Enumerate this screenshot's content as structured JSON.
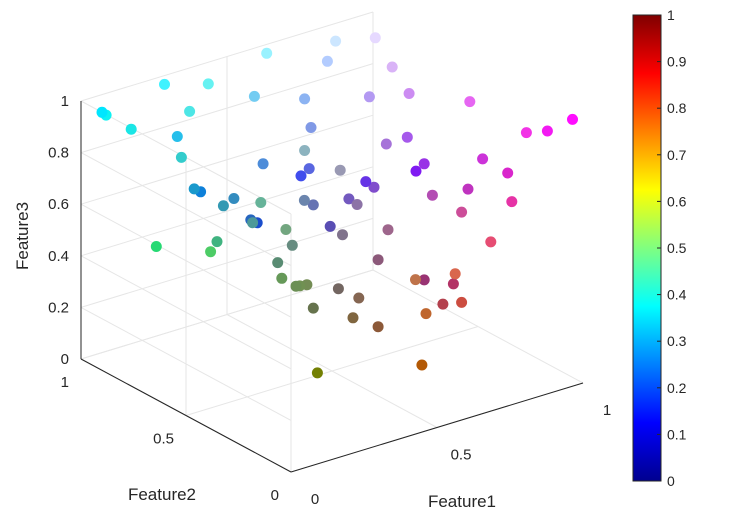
{
  "chart_data": {
    "type": "scatter3d",
    "title": "",
    "xlabel": "Feature1",
    "ylabel": "Feature2",
    "zlabel": "Feature3",
    "xlim": [
      0,
      1
    ],
    "ylim": [
      0,
      1
    ],
    "zlim": [
      0,
      1
    ],
    "x_ticks": [
      "0",
      "0.5",
      "1"
    ],
    "y_ticks": [
      "0",
      "0.5",
      "1"
    ],
    "z_ticks": [
      "0",
      "0.2",
      "0.4",
      "0.6",
      "0.8",
      "1"
    ],
    "grid": true,
    "colormap": "jet",
    "colorbar": {
      "range": [
        0,
        1
      ],
      "ticks": [
        "0",
        "0.1",
        "0.2",
        "0.3",
        "0.4",
        "0.5",
        "0.6",
        "0.7",
        "0.8",
        "0.9",
        "1"
      ],
      "colors": [
        "#00008f",
        "#0000ff",
        "#0080ff",
        "#00ffff",
        "#80ff80",
        "#ffff00",
        "#ff8000",
        "#ff0000",
        "#800000"
      ]
    },
    "series_note": "point color encodes RGB = (Feature1, Feature2, Feature3)",
    "points": [
      [
        0.45,
        0.5,
        0.01
      ],
      [
        0.7,
        0.35,
        0.02
      ],
      [
        0.55,
        0.35,
        0.22
      ],
      [
        0.75,
        0.4,
        0.18
      ],
      [
        0.8,
        0.3,
        0.25
      ],
      [
        0.7,
        0.25,
        0.3
      ],
      [
        0.75,
        0.45,
        0.29
      ],
      [
        0.85,
        0.4,
        0.3
      ],
      [
        0.9,
        0.3,
        0.45
      ],
      [
        0.7,
        0.2,
        0.4
      ],
      [
        0.6,
        0.2,
        0.45
      ],
      [
        0.55,
        0.35,
        0.48
      ],
      [
        0.62,
        0.4,
        0.55
      ],
      [
        0.45,
        0.4,
        0.38
      ],
      [
        0.4,
        0.45,
        0.3
      ],
      [
        0.42,
        0.56,
        0.33
      ],
      [
        0.45,
        0.55,
        0.33
      ],
      [
        0.44,
        0.57,
        0.32
      ],
      [
        0.4,
        0.6,
        0.35
      ],
      [
        0.35,
        0.55,
        0.45
      ],
      [
        0.3,
        0.8,
        0.4
      ],
      [
        0.5,
        0.4,
        0.25
      ],
      [
        0.45,
        0.65,
        0.5
      ],
      [
        0.4,
        0.7,
        0.6
      ],
      [
        0.52,
        0.4,
        0.32
      ],
      [
        0.4,
        0.55,
        0.5
      ],
      [
        0.5,
        0.45,
        0.55
      ],
      [
        0.3,
        0.6,
        0.6
      ],
      [
        0.25,
        0.7,
        0.5
      ],
      [
        0.15,
        0.85,
        0.45
      ],
      [
        0.2,
        0.6,
        0.7
      ],
      [
        0.35,
        0.3,
        0.7
      ],
      [
        0.15,
        0.4,
        0.75
      ],
      [
        0.1,
        0.6,
        0.8
      ],
      [
        0.2,
        0.55,
        0.75
      ],
      [
        0.4,
        0.45,
        0.7
      ],
      [
        0.45,
        0.35,
        0.75
      ],
      [
        0.5,
        0.3,
        0.8
      ],
      [
        0.55,
        0.45,
        0.65
      ],
      [
        0.42,
        0.52,
        0.68
      ],
      [
        0.6,
        0.6,
        0.7
      ],
      [
        0.1,
        0.3,
        0.8
      ],
      [
        0.05,
        0.5,
        0.85
      ],
      [
        0.3,
        0.55,
        0.85
      ],
      [
        0.55,
        0.7,
        0.75
      ],
      [
        0.8,
        0.2,
        0.85
      ],
      [
        0.85,
        0.15,
        0.8
      ],
      [
        0.75,
        0.2,
        0.75
      ],
      [
        0.9,
        0.2,
        0.65
      ],
      [
        0.8,
        0.3,
        0.6
      ],
      [
        0.7,
        0.3,
        0.7
      ],
      [
        0.6,
        0.2,
        0.9
      ],
      [
        0.5,
        0.1,
        0.95
      ],
      [
        0.4,
        0.2,
        0.9
      ],
      [
        0.65,
        0.45,
        0.85
      ],
      [
        0.2,
        0.8,
        0.8
      ],
      [
        0.1,
        0.9,
        0.9
      ],
      [
        0.05,
        0.95,
        0.95
      ],
      [
        0.0,
        0.9,
        1.0
      ],
      [
        0.3,
        0.9,
        0.9
      ],
      [
        0.45,
        0.8,
        0.95
      ],
      [
        0.55,
        0.7,
        0.95
      ],
      [
        0.7,
        0.6,
        0.95
      ],
      [
        0.8,
        0.55,
        0.95
      ],
      [
        0.9,
        0.4,
        0.95
      ],
      [
        0.95,
        0.1,
        0.95
      ],
      [
        1.0,
        0.05,
        1.0
      ],
      [
        0.95,
        0.2,
        0.9
      ],
      [
        0.7,
        0.8,
        1.0
      ],
      [
        0.8,
        0.9,
        1.0
      ],
      [
        0.25,
        0.95,
        1.0
      ],
      [
        0.4,
        0.95,
        0.95
      ],
      [
        0.6,
        0.95,
        1.0
      ],
      [
        0.9,
        0.85,
        1.0
      ],
      [
        0.5,
        0.6,
        0.9
      ],
      [
        0.65,
        0.35,
        0.92
      ],
      [
        0.35,
        0.4,
        0.88
      ],
      [
        0.15,
        0.75,
        0.92
      ],
      [
        0.85,
        0.7,
        0.97
      ],
      [
        0.25,
        0.3,
        0.93
      ]
    ]
  }
}
